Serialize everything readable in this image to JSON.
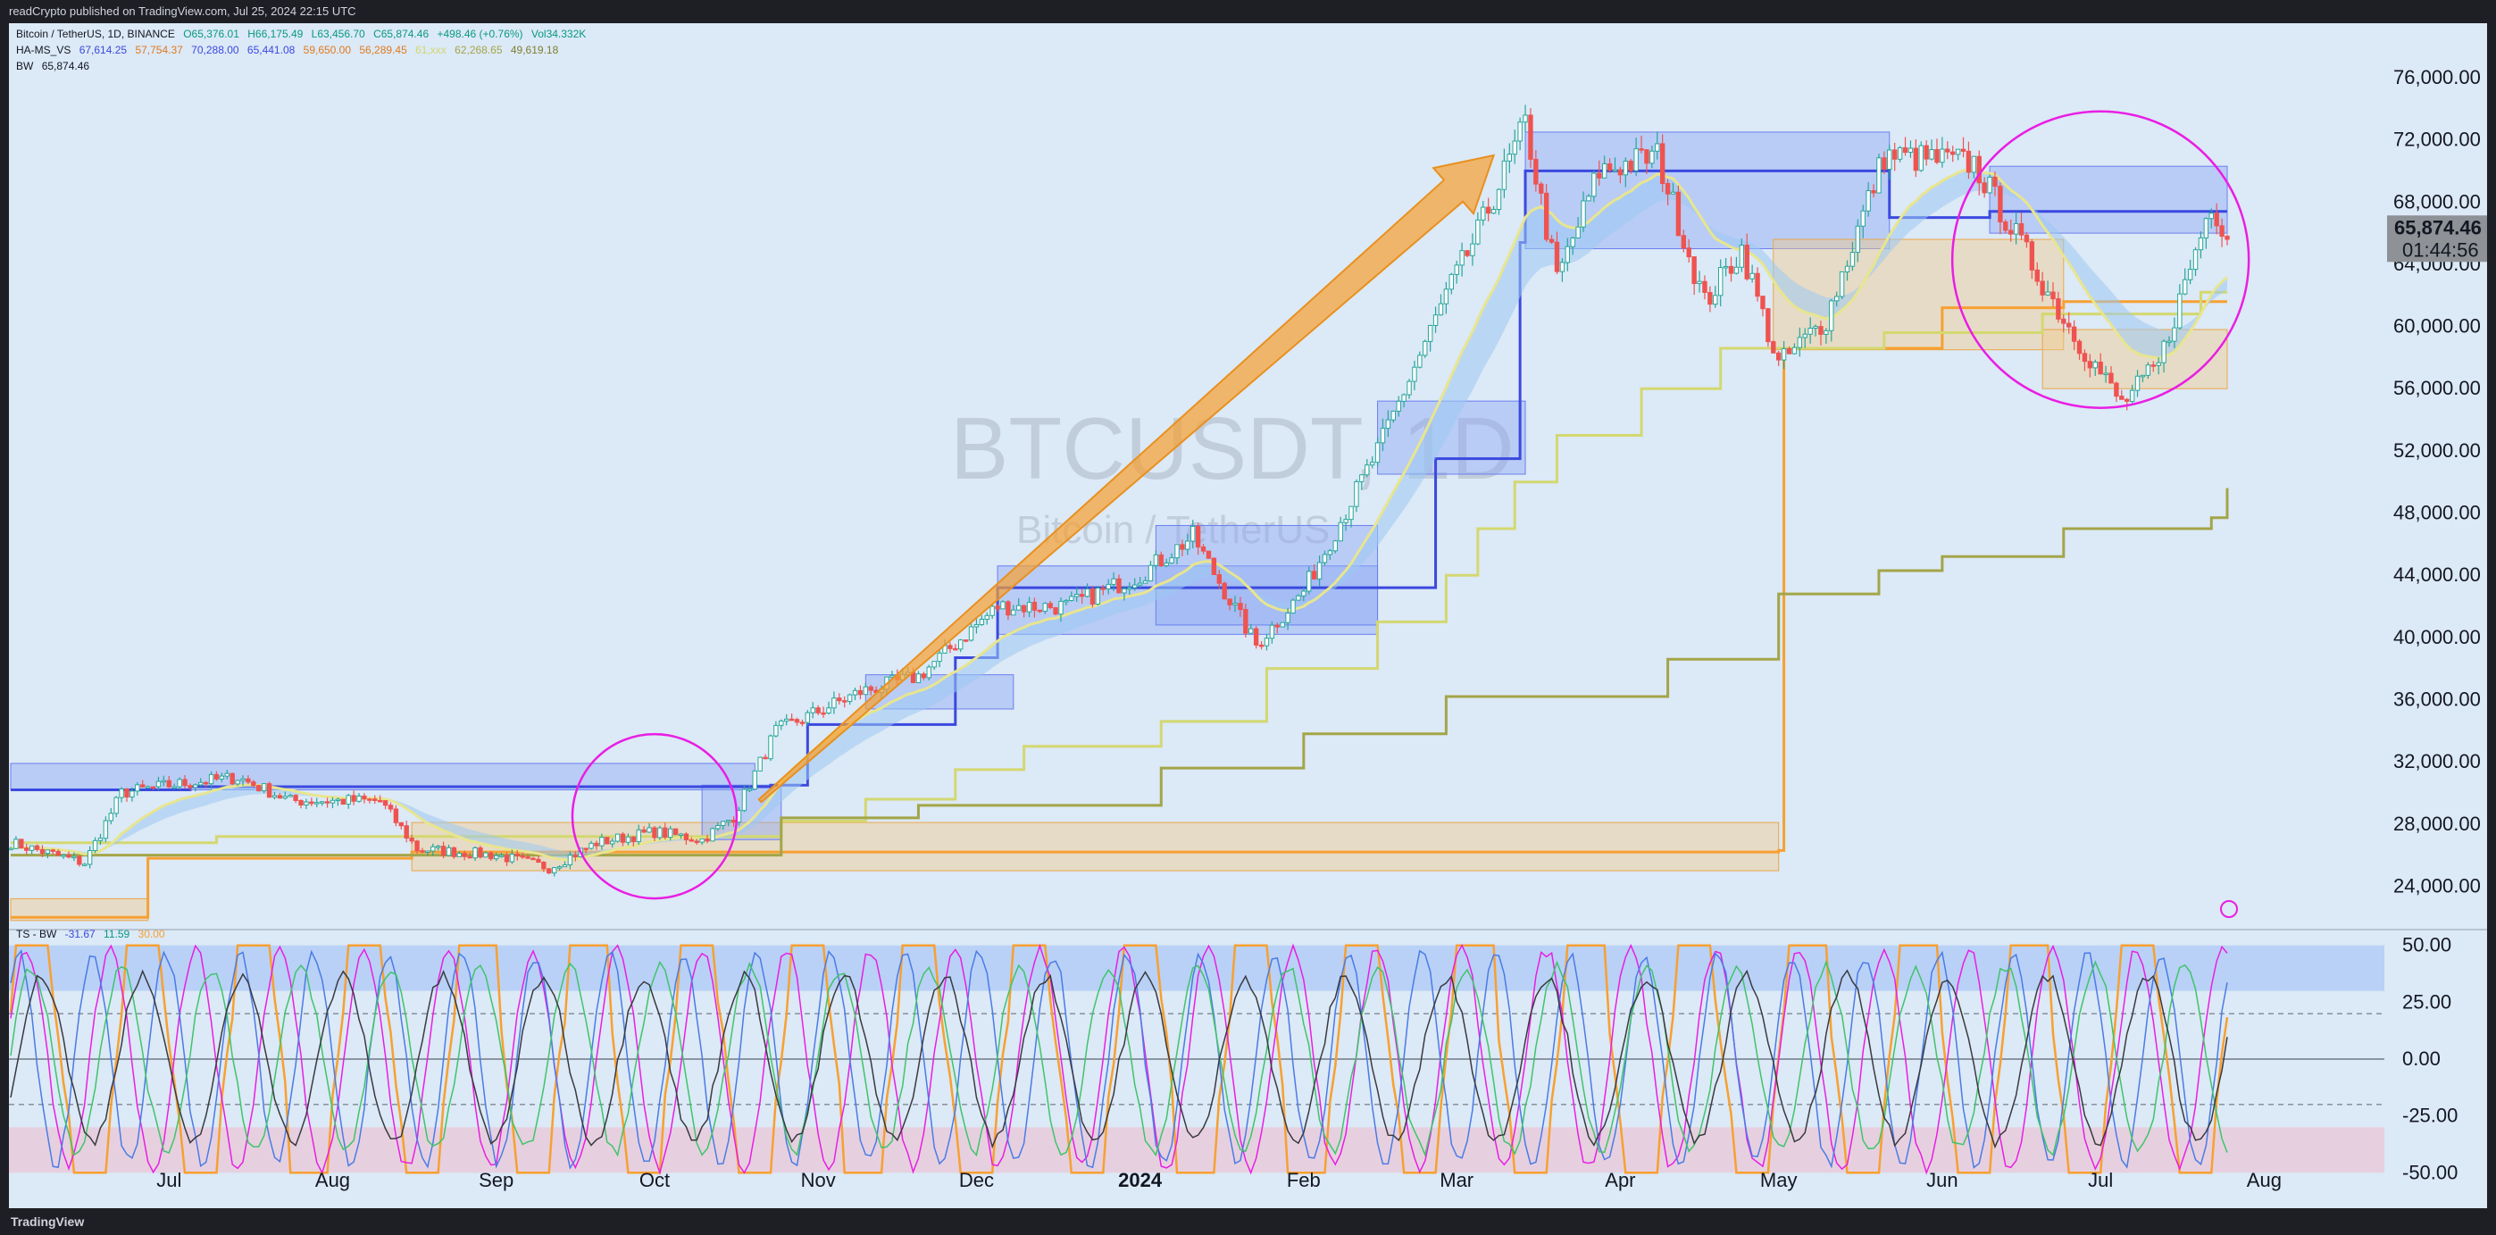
{
  "header": {
    "published": "readCrypto published on TradingView.com, Jul 25, 2024 22:15 UTC"
  },
  "legend": {
    "main": {
      "pair": "Bitcoin / TetherUS, 1D, BINANCE",
      "o": "O65,376.01",
      "h": "H66,175.49",
      "l": "L63,456.70",
      "c": "C65,874.46",
      "chg": "+498.46 (+0.76%)",
      "vol": "Vol34.332K"
    },
    "ha": {
      "name": "HA-MS_VS",
      "v1": "67,614.25",
      "v2": "57,754.37",
      "v3": "70,288.00",
      "v4": "65,441.08",
      "v5": "59,650.00",
      "v6": "56,289.45",
      "v7": "61,xxx",
      "v8": "62,268.65",
      "v9": "49,619.18"
    },
    "bw": {
      "name": "BW",
      "value": "65,874.46"
    },
    "ts": {
      "name": "TS - BW",
      "v1": "-31.67",
      "v2": "11.59",
      "v3": "30.00"
    }
  },
  "watermark": {
    "symbol": "BTCUSDT, 1D",
    "description": "Bitcoin / TetherUS"
  },
  "price_tag": {
    "price": "65,874.46",
    "countdown": "01:44:56"
  },
  "footer": {
    "brand": "TradingView"
  },
  "colors": {
    "bg": "#dce9f6",
    "up": "#26a69a",
    "down": "#ef5350",
    "blue_line": "#3b49df",
    "orange": "#f7a031",
    "olive": "#a3a548",
    "yellow": "#d3d870",
    "magenta": "#e91ee4",
    "ribbon_blue": "#9cc8f2",
    "ribbon_pink": "#f0b1bd"
  },
  "chart_data": [
    {
      "type": "candlestick",
      "title": "BTCUSDT, 1D",
      "x_ticks": [
        "Jul",
        "Aug",
        "Sep",
        "Oct",
        "Nov",
        "Dec",
        "2024",
        "Feb",
        "Mar",
        "Apr",
        "May",
        "Jun",
        "Jul",
        "Aug"
      ],
      "y_ticks": [
        24000,
        28000,
        32000,
        36000,
        40000,
        44000,
        48000,
        52000,
        56000,
        60000,
        64000,
        68000,
        72000,
        76000
      ],
      "y_tick_labels": [
        "24,000.00",
        "28,000.00",
        "32,000.00",
        "36,000.00",
        "40,000.00",
        "44,000.00",
        "48,000.00",
        "52,000.00",
        "56,000.00",
        "60,000.00",
        "64,000.00",
        "68,000.00",
        "72,000.00",
        "76,000.00"
      ],
      "ylim": [
        21500,
        79500
      ],
      "last_price": 65874.46,
      "price_path": [
        [
          "2023-06-01",
          26800
        ],
        [
          "2023-06-15",
          25500
        ],
        [
          "2023-06-22",
          30000
        ],
        [
          "2023-07-01",
          30500
        ],
        [
          "2023-07-14",
          31000
        ],
        [
          "2023-07-24",
          29500
        ],
        [
          "2023-08-10",
          29500
        ],
        [
          "2023-08-17",
          26400
        ],
        [
          "2023-09-01",
          26000
        ],
        [
          "2023-09-11",
          25200
        ],
        [
          "2023-09-20",
          26800
        ],
        [
          "2023-10-01",
          27500
        ],
        [
          "2023-10-10",
          27000
        ],
        [
          "2023-10-16",
          28500
        ],
        [
          "2023-10-24",
          34000
        ],
        [
          "2023-11-09",
          36500
        ],
        [
          "2023-11-20",
          37500
        ],
        [
          "2023-12-05",
          42000
        ],
        [
          "2023-12-18",
          42000
        ],
        [
          "2024-01-01",
          44000
        ],
        [
          "2024-01-11",
          46500
        ],
        [
          "2024-01-23",
          39500
        ],
        [
          "2024-02-01",
          43000
        ],
        [
          "2024-02-15",
          52000
        ],
        [
          "2024-02-28",
          62000
        ],
        [
          "2024-03-05",
          66000
        ],
        [
          "2024-03-14",
          73000
        ],
        [
          "2024-03-20",
          63000
        ],
        [
          "2024-03-28",
          70000
        ],
        [
          "2024-04-08",
          71000
        ],
        [
          "2024-04-17",
          61500
        ],
        [
          "2024-04-24",
          65000
        ],
        [
          "2024-05-01",
          57500
        ],
        [
          "2024-05-10",
          60500
        ],
        [
          "2024-05-21",
          71000
        ],
        [
          "2024-06-07",
          70500
        ],
        [
          "2024-06-24",
          60500
        ],
        [
          "2024-07-05",
          55000
        ],
        [
          "2024-07-12",
          57500
        ],
        [
          "2024-07-22",
          68000
        ],
        [
          "2024-07-25",
          65874
        ]
      ],
      "series": [
        {
          "name": "HA-MS_VS",
          "values": []
        },
        {
          "name": "BW",
          "values": []
        }
      ],
      "annotations": [
        "circle around Oct 2023 breakout",
        "orange arrow Oct 2023 to Mar 2024",
        "circle around Jun–Jul 2024"
      ]
    },
    {
      "type": "line",
      "title": "TS - BW",
      "y_ticks": [
        50,
        25,
        0,
        -25,
        -50
      ],
      "y_tick_labels": [
        "50.00",
        "25.00",
        "0.00",
        "-25.00",
        "-50.00"
      ],
      "ylim": [
        -55,
        55
      ],
      "bands": {
        "upper": [
          30,
          50
        ],
        "lower": [
          -50,
          -30
        ]
      }
    }
  ]
}
